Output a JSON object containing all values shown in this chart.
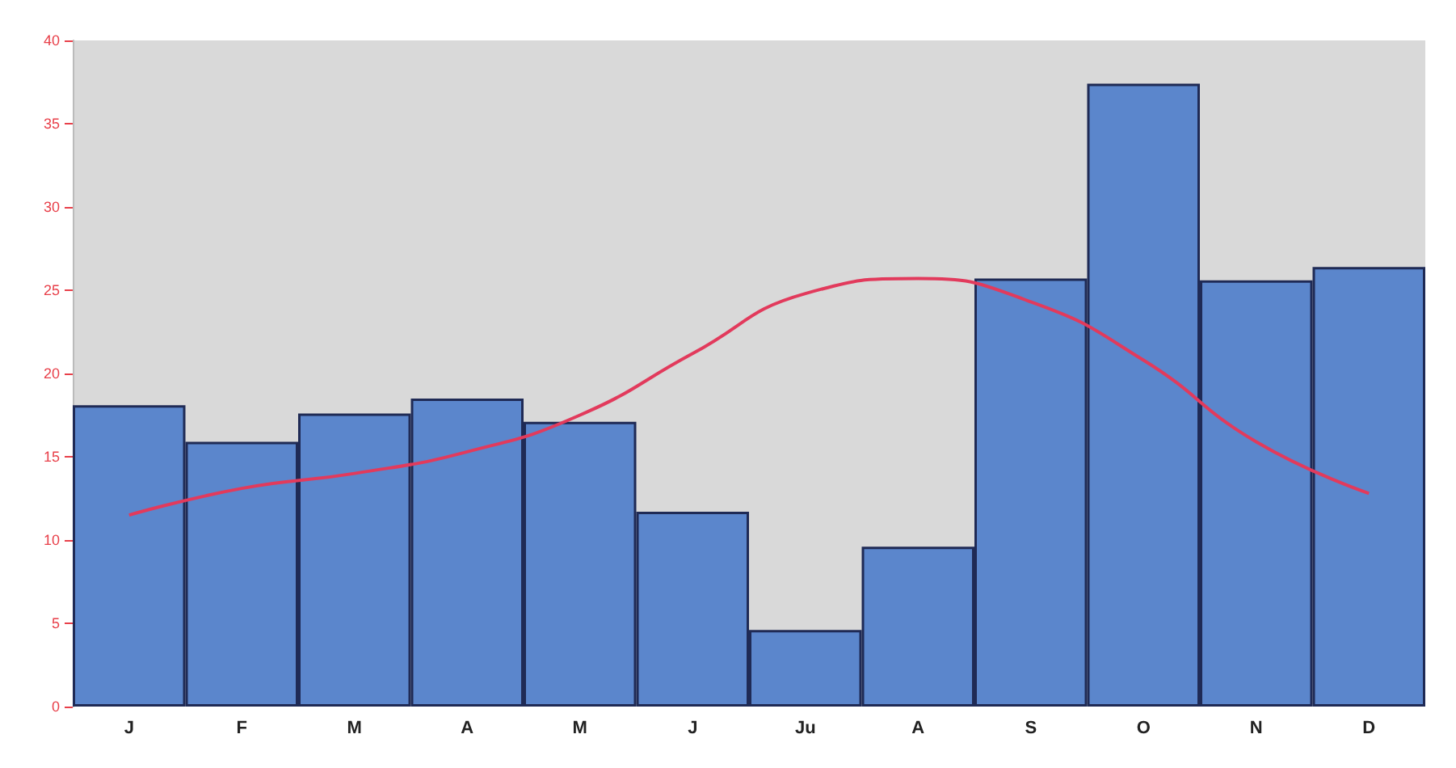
{
  "chart_data": {
    "type": "bar",
    "categories": [
      "J",
      "F",
      "M",
      "A",
      "M",
      "J",
      "Ju",
      "A",
      "S",
      "O",
      "N",
      "D"
    ],
    "series": [
      {
        "color": "#5b86cc",
        "values": [
          18.1,
          15.9,
          17.6,
          18.5,
          17.1,
          11.7,
          4.6,
          9.6,
          25.7,
          37.4,
          25.6,
          26.4
        ]
      },
      {
        "type": "line",
        "color": "#e23a5c",
        "values": [
          11.5,
          13.1,
          14.0,
          15.3,
          17.5,
          21.2,
          24.8,
          25.7,
          24.3,
          20.8,
          15.9,
          12.8
        ]
      }
    ],
    "ylim": [
      0,
      40
    ],
    "yticks": [
      0,
      5,
      10,
      15,
      20,
      25,
      30,
      35,
      40
    ],
    "grid": false,
    "marker": "none",
    "line_style": "solid"
  }
}
